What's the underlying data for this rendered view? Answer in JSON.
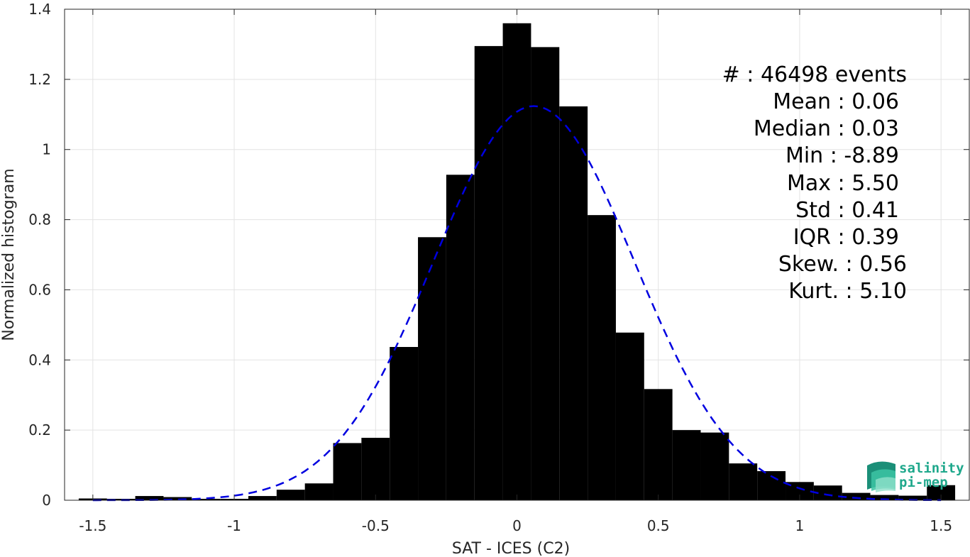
{
  "chart_data": {
    "type": "bar",
    "xlabel": "SAT - ICES (C2)",
    "ylabel": "Normalized histogram",
    "xlim": [
      -1.6,
      1.6
    ],
    "ylim": [
      0,
      1.4
    ],
    "grid": true,
    "bin_width": 0.1,
    "bar_width": 0.1,
    "x_ticks": [
      -1.5,
      -1,
      -0.5,
      0,
      0.5,
      1,
      1.5
    ],
    "x_tick_labels": [
      "-1.5",
      "-1",
      "-0.5",
      "0",
      "0.5",
      "1",
      "1.5"
    ],
    "y_ticks": [
      0,
      0.2,
      0.4,
      0.6,
      0.8,
      1,
      1.2,
      1.4
    ],
    "y_tick_labels": [
      "0",
      "0.2",
      "0.4",
      "0.6",
      "0.8",
      "1",
      "1.2",
      "1.4"
    ],
    "bins": [
      {
        "x": -1.5,
        "y": 0.005
      },
      {
        "x": -1.4,
        "y": 0.004
      },
      {
        "x": -1.3,
        "y": 0.012
      },
      {
        "x": -1.2,
        "y": 0.009
      },
      {
        "x": -1.1,
        "y": 0.004
      },
      {
        "x": -1.0,
        "y": 0.004
      },
      {
        "x": -0.9,
        "y": 0.012
      },
      {
        "x": -0.8,
        "y": 0.03
      },
      {
        "x": -0.7,
        "y": 0.048
      },
      {
        "x": -0.6,
        "y": 0.163
      },
      {
        "x": -0.5,
        "y": 0.178
      },
      {
        "x": -0.4,
        "y": 0.437
      },
      {
        "x": -0.3,
        "y": 0.75
      },
      {
        "x": -0.2,
        "y": 0.928
      },
      {
        "x": -0.1,
        "y": 1.295
      },
      {
        "x": 0.0,
        "y": 1.36
      },
      {
        "x": 0.1,
        "y": 1.292
      },
      {
        "x": 0.2,
        "y": 1.123
      },
      {
        "x": 0.3,
        "y": 0.813
      },
      {
        "x": 0.4,
        "y": 0.478
      },
      {
        "x": 0.5,
        "y": 0.317
      },
      {
        "x": 0.6,
        "y": 0.2
      },
      {
        "x": 0.7,
        "y": 0.193
      },
      {
        "x": 0.8,
        "y": 0.105
      },
      {
        "x": 0.9,
        "y": 0.083
      },
      {
        "x": 1.0,
        "y": 0.052
      },
      {
        "x": 1.1,
        "y": 0.042
      },
      {
        "x": 1.2,
        "y": 0.021
      },
      {
        "x": 1.3,
        "y": 0.015
      },
      {
        "x": 1.4,
        "y": 0.013
      },
      {
        "x": 1.5,
        "y": 0.043
      }
    ],
    "fit_curve": {
      "style": "dashed",
      "color": "#0000e0",
      "mean": 0.06,
      "std": 0.355,
      "x_range": [
        -1.5,
        1.5
      ]
    },
    "bar_color": "#000000",
    "stats": {
      "count": "#  : 46498 events",
      "mean": "Mean : 0.06",
      "median": "Median : 0.03",
      "min": "Min : -8.89",
      "max": "Max : 5.50",
      "std": "Std : 0.41",
      "iqr": "IQR : 0.39",
      "skew": "Skew. : 0.56",
      "kurt": "Kurt. : 5.10"
    }
  },
  "logo": {
    "line1": "salinity",
    "line2": "pi-mep",
    "color": "#1fa88c"
  }
}
